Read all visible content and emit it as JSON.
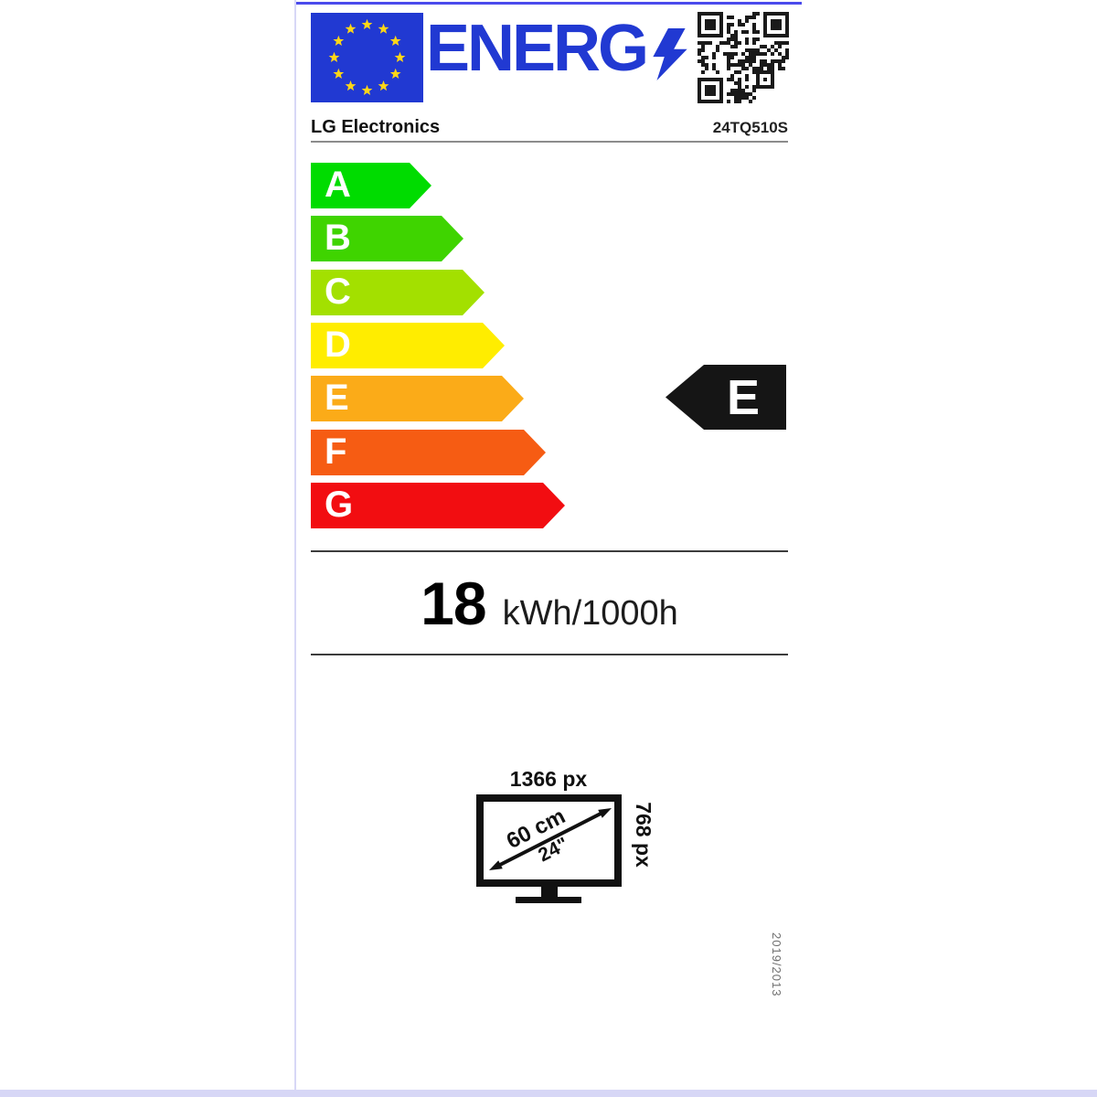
{
  "header": {
    "logo_text": "ENERG",
    "brand": "LG Electronics",
    "model": "24TQ510S"
  },
  "scale": {
    "grades": [
      {
        "letter": "A",
        "color": "#00dc00"
      },
      {
        "letter": "B",
        "color": "#3fd400"
      },
      {
        "letter": "C",
        "color": "#a3e000"
      },
      {
        "letter": "D",
        "color": "#ffed00"
      },
      {
        "letter": "E",
        "color": "#fbab18"
      },
      {
        "letter": "F",
        "color": "#f65c13"
      },
      {
        "letter": "G",
        "color": "#f20d11"
      }
    ]
  },
  "rating": {
    "letter": "E",
    "color": "#151515"
  },
  "consumption": {
    "value": "18",
    "unit": "kWh/1000h"
  },
  "display": {
    "width": "1366 px",
    "height": "768 px",
    "diagonal_cm": "60 cm",
    "diagonal_inch": "24\""
  },
  "footer": {
    "regulation": "2019/2013"
  },
  "colors": {
    "brand_blue": "#2139d2",
    "star_yellow": "#ffd617",
    "qr_dark": "#1a1a1a",
    "top_line": "#4a4aec",
    "edge_line": "#d7d7f6"
  }
}
